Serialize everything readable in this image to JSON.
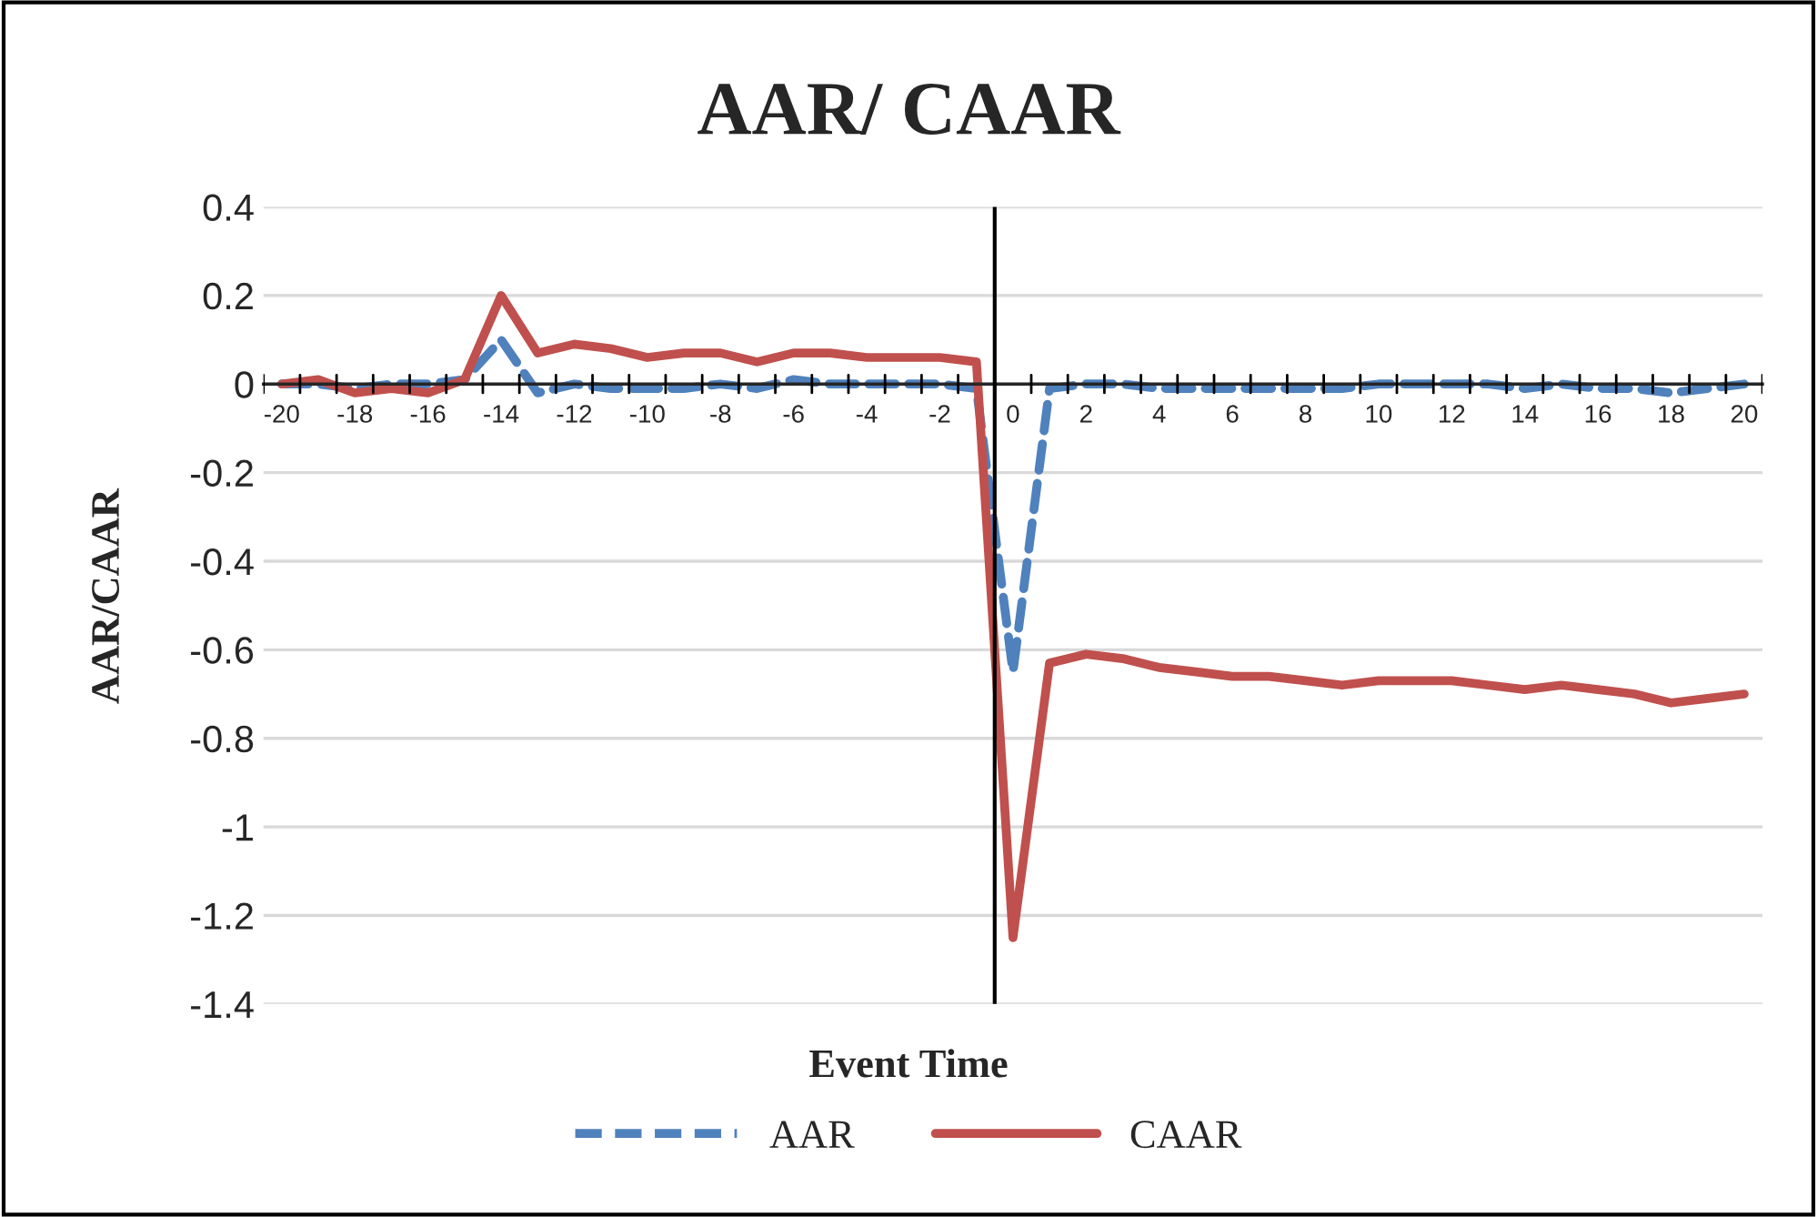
{
  "chart_data": {
    "type": "line",
    "title": "AAR/ CAAR",
    "xlabel": "Event Time",
    "ylabel": "AAR/CAAR",
    "x": [
      -20,
      -19,
      -18,
      -17,
      -16,
      -15,
      -14,
      -13,
      -12,
      -11,
      -10,
      -9,
      -8,
      -7,
      -6,
      -5,
      -4,
      -3,
      -2,
      -1,
      0,
      1,
      2,
      3,
      4,
      5,
      6,
      7,
      8,
      9,
      10,
      11,
      12,
      13,
      14,
      15,
      16,
      17,
      18,
      19,
      20
    ],
    "series": [
      {
        "name": "AAR",
        "color": "#4f81bd",
        "line_style": "dashed",
        "values": [
          0,
          0,
          -0.01,
          0,
          0,
          0.01,
          0.1,
          -0.02,
          0,
          -0.01,
          -0.01,
          -0.01,
          0,
          -0.01,
          0.01,
          0,
          0,
          0,
          0,
          -0.01,
          -0.65,
          -0.01,
          0,
          0,
          -0.01,
          -0.01,
          -0.01,
          -0.01,
          -0.01,
          -0.01,
          0,
          0,
          0,
          0,
          -0.01,
          0,
          -0.01,
          -0.01,
          -0.02,
          -0.01,
          0
        ]
      },
      {
        "name": "CAAR",
        "color": "#c0504d",
        "line_style": "solid",
        "values": [
          0,
          0.01,
          -0.02,
          -0.01,
          -0.02,
          0.01,
          0.2,
          0.07,
          0.09,
          0.08,
          0.06,
          0.07,
          0.07,
          0.05,
          0.07,
          0.07,
          0.06,
          0.06,
          0.06,
          0.05,
          -1.25,
          -0.63,
          -0.61,
          -0.62,
          -0.64,
          -0.65,
          -0.66,
          -0.66,
          -0.67,
          -0.68,
          -0.67,
          -0.67,
          -0.67,
          -0.68,
          -0.69,
          -0.68,
          -0.69,
          -0.7,
          -0.72,
          -0.71,
          -0.7
        ]
      }
    ],
    "xlim": [
      -20.5,
      20.5
    ],
    "xticks": [
      -20,
      -18,
      -16,
      -14,
      -12,
      -10,
      -8,
      -6,
      -4,
      -2,
      0,
      2,
      4,
      6,
      8,
      10,
      12,
      14,
      16,
      18,
      20
    ],
    "ylim": [
      -1.4,
      0.4
    ],
    "yticks": [
      -1.4,
      -1.2,
      -1,
      -0.8,
      -0.6,
      -0.4,
      -0.2,
      0,
      0.2,
      0.4
    ],
    "ref_lines": [
      {
        "axis": "x",
        "value": -0.5,
        "color": "#000000"
      }
    ],
    "grid": "y",
    "legend": "bottom"
  }
}
